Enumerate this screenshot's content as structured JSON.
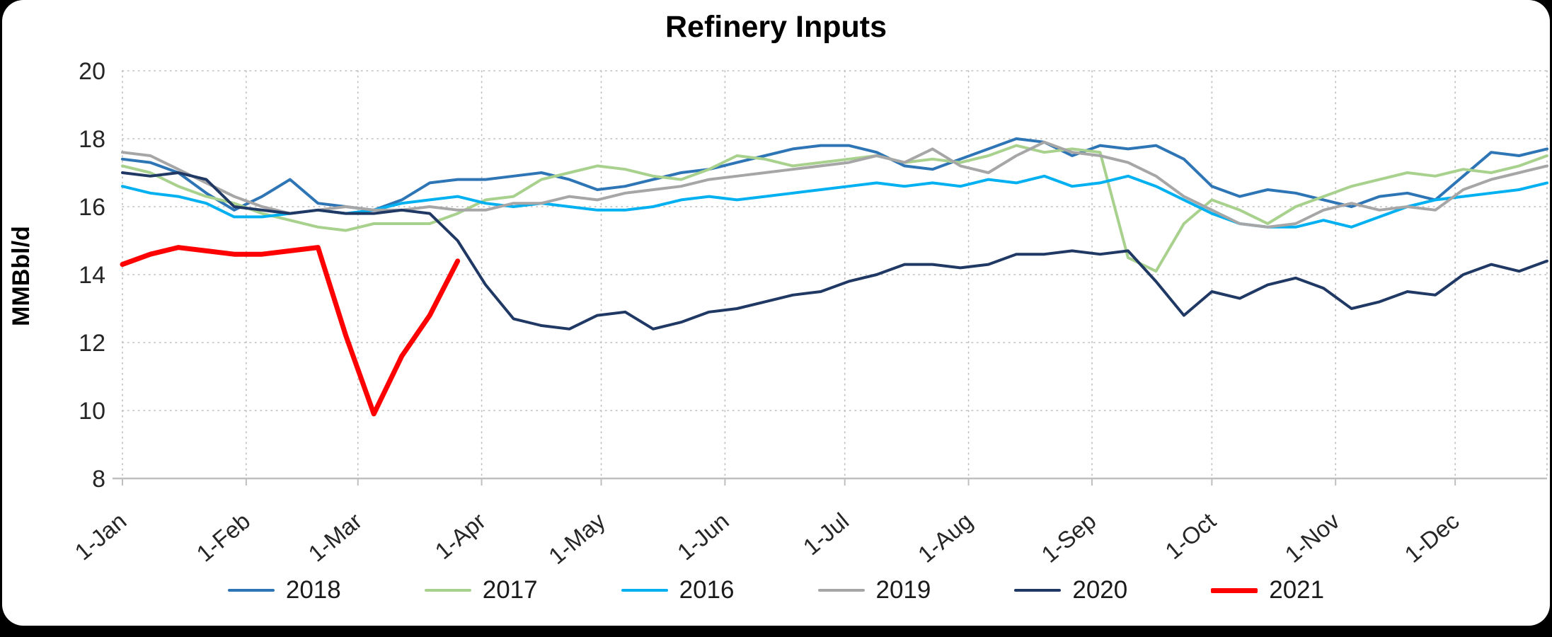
{
  "chart": {
    "title": "Refinery Inputs",
    "ylabel": "MMBbl/d"
  },
  "chart_data": {
    "type": "line",
    "title": "Refinery Inputs",
    "xlabel": "",
    "ylabel": "MMBbl/d",
    "x_unit": "week-of-year",
    "ylim": [
      8,
      20
    ],
    "y_ticks": [
      20,
      18,
      16,
      14,
      12,
      10,
      8
    ],
    "grid": "dotted",
    "legend_position": "bottom",
    "x_ticks": [
      {
        "label": "1-Jan",
        "week": 0
      },
      {
        "label": "1-Feb",
        "week": 4.43
      },
      {
        "label": "1-Mar",
        "week": 8.43
      },
      {
        "label": "1-Apr",
        "week": 12.86
      },
      {
        "label": "1-May",
        "week": 17.14
      },
      {
        "label": "1-Jun",
        "week": 21.57
      },
      {
        "label": "1-Jul",
        "week": 25.86
      },
      {
        "label": "1-Aug",
        "week": 30.29
      },
      {
        "label": "1-Sep",
        "week": 34.71
      },
      {
        "label": "1-Oct",
        "week": 39.0
      },
      {
        "label": "1-Nov",
        "week": 43.43
      },
      {
        "label": "1-Dec",
        "week": 47.71
      }
    ],
    "series": [
      {
        "name": "2018",
        "color": "#2E75B6",
        "line_width": 4,
        "values": [
          17.4,
          17.3,
          17.0,
          16.4,
          15.9,
          16.3,
          16.8,
          16.1,
          16.0,
          15.9,
          16.2,
          16.7,
          16.8,
          16.8,
          16.9,
          17.0,
          16.8,
          16.5,
          16.6,
          16.8,
          17.0,
          17.1,
          17.3,
          17.5,
          17.7,
          17.8,
          17.8,
          17.6,
          17.2,
          17.1,
          17.4,
          17.7,
          18.0,
          17.9,
          17.5,
          17.8,
          17.7,
          17.8,
          17.4,
          16.6,
          16.3,
          16.5,
          16.4,
          16.2,
          16.0,
          16.3,
          16.4,
          16.2,
          16.9,
          17.6,
          17.5,
          17.7
        ]
      },
      {
        "name": "2017",
        "color": "#A9D18E",
        "line_width": 4,
        "values": [
          17.2,
          17.0,
          16.6,
          16.3,
          16.1,
          15.8,
          15.6,
          15.4,
          15.3,
          15.5,
          15.5,
          15.5,
          15.8,
          16.2,
          16.3,
          16.8,
          17.0,
          17.2,
          17.1,
          16.9,
          16.8,
          17.1,
          17.5,
          17.4,
          17.2,
          17.3,
          17.4,
          17.5,
          17.3,
          17.4,
          17.3,
          17.5,
          17.8,
          17.6,
          17.7,
          17.6,
          14.5,
          14.1,
          15.5,
          16.2,
          15.9,
          15.5,
          16.0,
          16.3,
          16.6,
          16.8,
          17.0,
          16.9,
          17.1,
          17.0,
          17.2,
          17.5
        ]
      },
      {
        "name": "2016",
        "color": "#00B0F0",
        "line_width": 4,
        "values": [
          16.6,
          16.4,
          16.3,
          16.1,
          15.7,
          15.7,
          15.8,
          15.9,
          15.8,
          15.9,
          16.1,
          16.2,
          16.3,
          16.1,
          16.0,
          16.1,
          16.0,
          15.9,
          15.9,
          16.0,
          16.2,
          16.3,
          16.2,
          16.3,
          16.4,
          16.5,
          16.6,
          16.7,
          16.6,
          16.7,
          16.6,
          16.8,
          16.7,
          16.9,
          16.6,
          16.7,
          16.9,
          16.6,
          16.2,
          15.8,
          15.5,
          15.4,
          15.4,
          15.6,
          15.4,
          15.7,
          16.0,
          16.2,
          16.3,
          16.4,
          16.5,
          16.7
        ]
      },
      {
        "name": "2019",
        "color": "#A6A6A6",
        "line_width": 4,
        "values": [
          17.6,
          17.5,
          17.1,
          16.7,
          16.3,
          16.0,
          15.8,
          15.9,
          16.0,
          15.9,
          15.9,
          16.0,
          15.9,
          15.9,
          16.1,
          16.1,
          16.3,
          16.2,
          16.4,
          16.5,
          16.6,
          16.8,
          16.9,
          17.0,
          17.1,
          17.2,
          17.3,
          17.5,
          17.3,
          17.7,
          17.2,
          17.0,
          17.5,
          17.9,
          17.6,
          17.5,
          17.3,
          16.9,
          16.3,
          15.9,
          15.5,
          15.4,
          15.5,
          15.9,
          16.1,
          15.9,
          16.0,
          15.9,
          16.5,
          16.8,
          17.0,
          17.2
        ]
      },
      {
        "name": "2020",
        "color": "#1F3864",
        "line_width": 4,
        "values": [
          17.0,
          16.9,
          17.0,
          16.8,
          16.0,
          15.9,
          15.8,
          15.9,
          15.8,
          15.8,
          15.9,
          15.8,
          15.0,
          13.7,
          12.7,
          12.5,
          12.4,
          12.8,
          12.9,
          12.4,
          12.6,
          12.9,
          13.0,
          13.2,
          13.4,
          13.5,
          13.8,
          14.0,
          14.3,
          14.3,
          14.2,
          14.3,
          14.6,
          14.6,
          14.7,
          14.6,
          14.7,
          13.8,
          12.8,
          13.5,
          13.3,
          13.7,
          13.9,
          13.6,
          13.0,
          13.2,
          13.5,
          13.4,
          14.0,
          14.3,
          14.1,
          14.4
        ]
      },
      {
        "name": "2021",
        "color": "#FF0000",
        "line_width": 7,
        "values": [
          14.3,
          14.6,
          14.8,
          14.7,
          14.6,
          14.6,
          14.7,
          14.8,
          12.2,
          9.9,
          11.6,
          12.8,
          14.4
        ]
      }
    ]
  }
}
